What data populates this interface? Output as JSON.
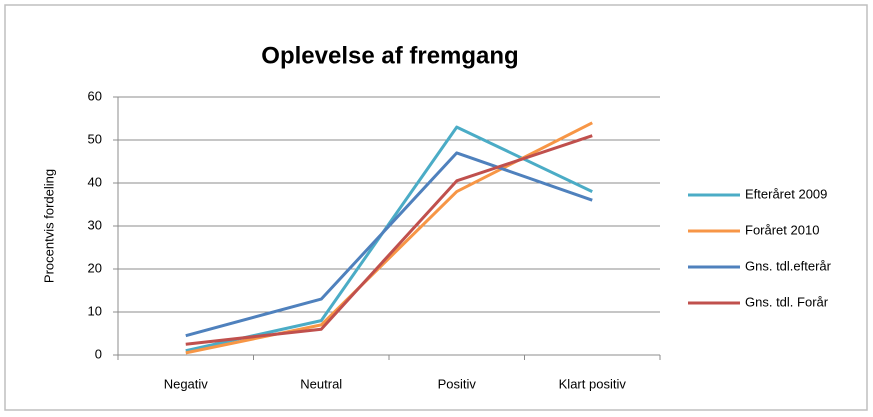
{
  "chart_data": {
    "type": "line",
    "title": "Oplevelse af fremgang",
    "y_label": "Procentvis fordeling",
    "categories": [
      "Negativ",
      "Neutral",
      "Positiv",
      "Klart positiv"
    ],
    "series": [
      {
        "name": "Efteråret 2009",
        "color": "#4bacc6",
        "values": [
          1,
          8,
          53,
          38
        ]
      },
      {
        "name": "Foråret 2010",
        "color": "#f79646",
        "values": [
          0.5,
          7,
          38,
          54
        ]
      },
      {
        "name": "Gns. tdl.efterår",
        "color": "#4f81bd",
        "values": [
          4.5,
          13,
          47,
          36
        ]
      },
      {
        "name": "Gns. tdl. Forår",
        "color": "#c0504d",
        "values": [
          2.5,
          6,
          40.5,
          51
        ]
      }
    ],
    "ylim": [
      0,
      60
    ],
    "yticks": [
      0,
      10,
      20,
      30,
      40,
      50,
      60
    ],
    "grid": true,
    "legend": "right"
  }
}
